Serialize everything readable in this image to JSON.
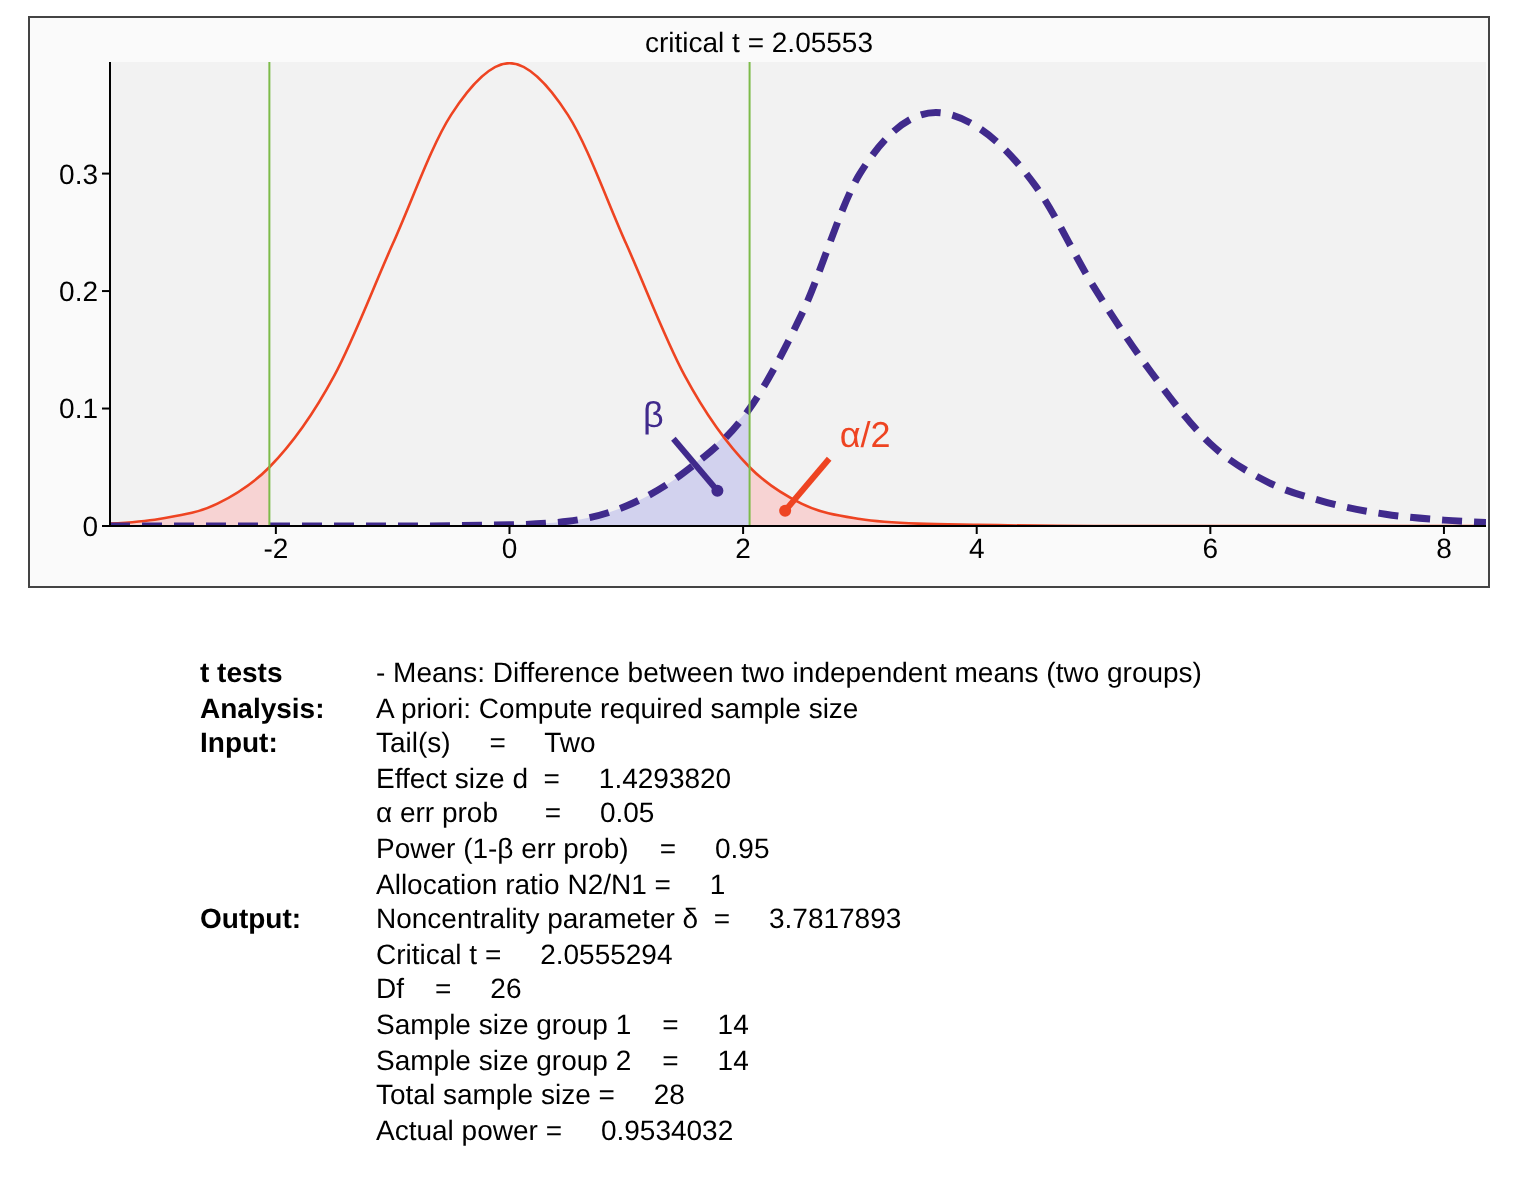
{
  "chart_data": {
    "type": "line",
    "title": "critical t =  2.05553",
    "xlim": [
      -3.42,
      8.36
    ],
    "xticks": [
      -2,
      0,
      2,
      4,
      6,
      8
    ],
    "ylim": [
      0,
      0.395
    ],
    "yticks": [
      0,
      0.1,
      0.2,
      0.3
    ],
    "grid": false,
    "legend": false,
    "marker": "none",
    "series": [
      {
        "type": "area",
        "color": "#f7d3d3",
        "x": [
          -3.42,
          -3,
          -2.5,
          -2.056
        ],
        "values": [
          0.002,
          0.006,
          0.019,
          0.05
        ]
      },
      {
        "type": "area",
        "color": "#f7d3d3",
        "x": [
          2.056,
          2.5,
          3,
          3.5,
          4
        ],
        "values": [
          0.05,
          0.019,
          0.006,
          0.002,
          0.001
        ]
      },
      {
        "type": "area",
        "color": "#d2d2ee",
        "x": [
          0,
          0.5,
          1,
          1.5,
          2.056
        ],
        "values": [
          0.001,
          0.004,
          0.017,
          0.046,
          0.1
        ]
      },
      {
        "type": "line",
        "color": "#ee4422",
        "line_style": "solid",
        "x": [
          -3.42,
          -3,
          -2.5,
          -2.056,
          -1.5,
          -1,
          -0.5,
          0,
          0.5,
          1,
          1.5,
          2.056,
          2.5,
          3,
          3.5,
          4,
          5,
          6,
          8.36
        ],
        "values": [
          0.002,
          0.006,
          0.019,
          0.05,
          0.128,
          0.24,
          0.35,
          0.394,
          0.35,
          0.24,
          0.128,
          0.05,
          0.019,
          0.006,
          0.002,
          0.001,
          0,
          0,
          0
        ]
      },
      {
        "type": "line",
        "color": "#402a8c",
        "line_style": "dashed",
        "x": [
          -3.42,
          -1,
          0,
          0.5,
          1,
          1.5,
          2.056,
          2.5,
          3,
          3.65,
          4,
          4.5,
          5,
          5.5,
          6,
          6.5,
          7,
          7.5,
          8,
          8.36
        ],
        "values": [
          0,
          0,
          0.001,
          0.004,
          0.017,
          0.046,
          0.1,
          0.18,
          0.3,
          0.352,
          0.34,
          0.29,
          0.204,
          0.13,
          0.07,
          0.037,
          0.02,
          0.01,
          0.005,
          0.003
        ]
      }
    ],
    "ref_lines": [
      {
        "axis": "x",
        "value": -2.05553,
        "color": "#7dbb4a"
      },
      {
        "axis": "x",
        "value": 2.05553,
        "color": "#7dbb4a"
      }
    ],
    "annotations": [
      {
        "text": "β",
        "x": 1.78,
        "y": 0.03
      },
      {
        "text": "α/2",
        "x": 2.36,
        "y": 0.013
      },
      "t tests",
      "- Means: Difference between two independent means (two groups)",
      "Analysis:",
      "A priori: Compute required sample size",
      "Input:",
      "Tail(s)     =     Two",
      "Effect size d  =     1.4293820",
      "α err prob      =     0.05",
      "Power (1-β err prob)    =     0.95",
      "Allocation ratio N2/N1 =     1",
      "Output:",
      "Noncentrality parameter δ  =     3.7817893",
      "Critical t =     2.0555294",
      "Df    =     26",
      "Sample size group 1    =     14",
      "Sample size group 2    =     14",
      "Total sample size =     28",
      "Actual power =     0.9534032"
    ]
  }
}
